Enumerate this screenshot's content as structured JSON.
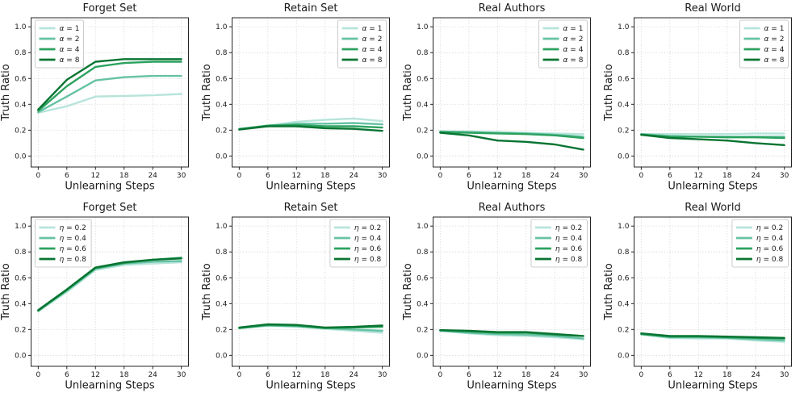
{
  "figure": {
    "background": "#ffffff",
    "text_color": "#1a1a1a",
    "title_color": "#111111",
    "grid_color": "#cfcfcf",
    "spine_color": "#262626",
    "legend_border_color": "#cccccc",
    "series_palette": [
      "#b7e4da",
      "#66c2a4",
      "#2ca25f",
      "#087432"
    ]
  },
  "axes_common": {
    "xlabel": "Unlearning Steps",
    "ylabel": "Truth Ratio",
    "x_ticks": [
      0,
      6,
      12,
      18,
      24,
      30
    ],
    "y_tick_labels": [
      "0.0",
      "0.2",
      "0.4",
      "0.6",
      "0.8",
      "1.0"
    ],
    "xlim": [
      -1.5,
      31.5
    ],
    "ylim": [
      -0.085,
      1.07
    ],
    "grid": true,
    "legend_entries_note": "legend swatch colors follow figure.series_palette order"
  },
  "chart_data": [
    {
      "type": "line",
      "id": "forget-set-alpha",
      "title": "Forget Set",
      "legend_position": "upper-left",
      "x": [
        0,
        6,
        12,
        18,
        24,
        30
      ],
      "series": [
        {
          "name": "α = 1",
          "values": [
            0.335,
            0.385,
            0.46,
            0.465,
            0.47,
            0.48
          ]
        },
        {
          "name": "α = 2",
          "values": [
            0.34,
            0.46,
            0.585,
            0.61,
            0.62,
            0.62
          ]
        },
        {
          "name": "α = 4",
          "values": [
            0.35,
            0.54,
            0.69,
            0.72,
            0.73,
            0.73
          ]
        },
        {
          "name": "α = 8",
          "values": [
            0.36,
            0.59,
            0.73,
            0.75,
            0.75,
            0.75
          ]
        }
      ]
    },
    {
      "type": "line",
      "id": "retain-set-alpha",
      "title": "Retain Set",
      "legend_position": "upper-right",
      "x": [
        0,
        6,
        12,
        18,
        24,
        30
      ],
      "series": [
        {
          "name": "α = 1",
          "values": [
            0.21,
            0.235,
            0.265,
            0.28,
            0.29,
            0.27
          ]
        },
        {
          "name": "α = 2",
          "values": [
            0.21,
            0.235,
            0.25,
            0.25,
            0.255,
            0.245
          ]
        },
        {
          "name": "α = 4",
          "values": [
            0.205,
            0.235,
            0.24,
            0.23,
            0.23,
            0.22
          ]
        },
        {
          "name": "α = 8",
          "values": [
            0.205,
            0.23,
            0.23,
            0.215,
            0.21,
            0.195
          ]
        }
      ]
    },
    {
      "type": "line",
      "id": "real-authors-alpha",
      "title": "Real Authors",
      "legend_position": "upper-right",
      "x": [
        0,
        6,
        12,
        18,
        24,
        30
      ],
      "series": [
        {
          "name": "α = 1",
          "values": [
            0.19,
            0.19,
            0.185,
            0.18,
            0.175,
            0.17
          ]
        },
        {
          "name": "α = 2",
          "values": [
            0.19,
            0.185,
            0.18,
            0.175,
            0.165,
            0.15
          ]
        },
        {
          "name": "α = 4",
          "values": [
            0.185,
            0.18,
            0.175,
            0.17,
            0.16,
            0.14
          ]
        },
        {
          "name": "α = 8",
          "values": [
            0.18,
            0.16,
            0.12,
            0.11,
            0.09,
            0.05
          ]
        }
      ]
    },
    {
      "type": "line",
      "id": "real-world-alpha",
      "title": "Real World",
      "legend_position": "upper-right",
      "x": [
        0,
        6,
        12,
        18,
        24,
        30
      ],
      "series": [
        {
          "name": "α = 1",
          "values": [
            0.17,
            0.17,
            0.17,
            0.17,
            0.175,
            0.175
          ]
        },
        {
          "name": "α = 2",
          "values": [
            0.17,
            0.155,
            0.15,
            0.15,
            0.15,
            0.15
          ]
        },
        {
          "name": "α = 4",
          "values": [
            0.165,
            0.15,
            0.15,
            0.145,
            0.145,
            0.14
          ]
        },
        {
          "name": "α = 8",
          "values": [
            0.165,
            0.14,
            0.13,
            0.12,
            0.1,
            0.085
          ]
        }
      ]
    },
    {
      "type": "line",
      "id": "forget-set-eta",
      "title": "Forget Set",
      "legend_position": "upper-left",
      "x": [
        0,
        6,
        12,
        18,
        24,
        30
      ],
      "series": [
        {
          "name": "η = 0.2",
          "values": [
            0.34,
            0.49,
            0.66,
            0.7,
            0.71,
            0.72
          ]
        },
        {
          "name": "η = 0.4",
          "values": [
            0.345,
            0.5,
            0.67,
            0.71,
            0.725,
            0.73
          ]
        },
        {
          "name": "η = 0.6",
          "values": [
            0.345,
            0.505,
            0.675,
            0.715,
            0.74,
            0.755
          ]
        },
        {
          "name": "η = 0.8",
          "values": [
            0.35,
            0.51,
            0.68,
            0.72,
            0.74,
            0.75
          ]
        }
      ]
    },
    {
      "type": "line",
      "id": "retain-set-eta",
      "title": "Retain Set",
      "legend_position": "upper-right",
      "x": [
        0,
        6,
        12,
        18,
        24,
        30
      ],
      "series": [
        {
          "name": "η = 0.2",
          "values": [
            0.21,
            0.23,
            0.22,
            0.205,
            0.19,
            0.175
          ]
        },
        {
          "name": "η = 0.4",
          "values": [
            0.21,
            0.23,
            0.225,
            0.21,
            0.2,
            0.19
          ]
        },
        {
          "name": "η = 0.6",
          "values": [
            0.21,
            0.235,
            0.23,
            0.21,
            0.215,
            0.22
          ]
        },
        {
          "name": "η = 0.8",
          "values": [
            0.215,
            0.24,
            0.235,
            0.215,
            0.22,
            0.23
          ]
        }
      ]
    },
    {
      "type": "line",
      "id": "real-authors-eta",
      "title": "Real Authors",
      "legend_position": "upper-right",
      "x": [
        0,
        6,
        12,
        18,
        24,
        30
      ],
      "series": [
        {
          "name": "η = 0.2",
          "values": [
            0.19,
            0.17,
            0.155,
            0.15,
            0.14,
            0.125
          ]
        },
        {
          "name": "η = 0.4",
          "values": [
            0.19,
            0.175,
            0.165,
            0.16,
            0.15,
            0.13
          ]
        },
        {
          "name": "η = 0.6",
          "values": [
            0.195,
            0.185,
            0.175,
            0.175,
            0.16,
            0.15
          ]
        },
        {
          "name": "η = 0.8",
          "values": [
            0.195,
            0.19,
            0.18,
            0.18,
            0.165,
            0.15
          ]
        }
      ]
    },
    {
      "type": "line",
      "id": "real-world-eta",
      "title": "Real World",
      "legend_position": "upper-right",
      "x": [
        0,
        6,
        12,
        18,
        24,
        30
      ],
      "series": [
        {
          "name": "η = 0.2",
          "values": [
            0.16,
            0.135,
            0.13,
            0.13,
            0.115,
            0.105
          ]
        },
        {
          "name": "η = 0.4",
          "values": [
            0.165,
            0.14,
            0.14,
            0.135,
            0.125,
            0.115
          ]
        },
        {
          "name": "η = 0.6",
          "values": [
            0.165,
            0.145,
            0.145,
            0.14,
            0.135,
            0.13
          ]
        },
        {
          "name": "η = 0.8",
          "values": [
            0.17,
            0.15,
            0.15,
            0.145,
            0.14,
            0.135
          ]
        }
      ]
    }
  ]
}
